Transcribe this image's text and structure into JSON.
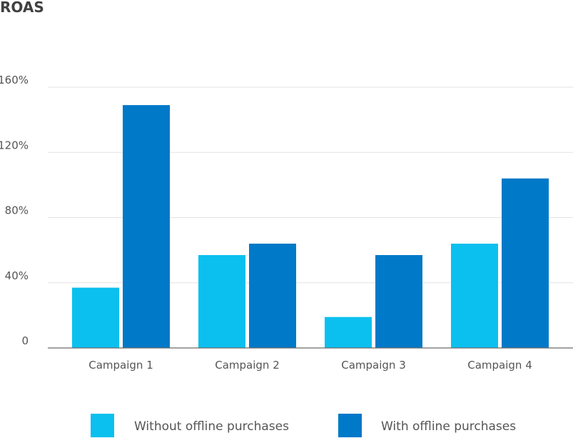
{
  "chart_data": {
    "type": "bar",
    "title": "ROAS",
    "xlabel": "",
    "ylabel": "",
    "categories": [
      "Campaign 1",
      "Campaign 2",
      "Campaign 3",
      "Campaign 4"
    ],
    "series": [
      {
        "name": "Without offline purchases",
        "color": "#0bc0ef",
        "values": [
          37,
          57,
          19,
          64
        ]
      },
      {
        "name": "With offline purchases",
        "color": "#0079c8",
        "values": [
          149,
          64,
          57,
          104
        ]
      }
    ],
    "ylim": [
      0,
      160
    ],
    "yticks": [
      0,
      40,
      80,
      120,
      160
    ],
    "ytick_labels": [
      "0",
      "40%",
      "80%",
      "120%",
      "160%"
    ],
    "grid": true,
    "legend_position": "bottom"
  }
}
